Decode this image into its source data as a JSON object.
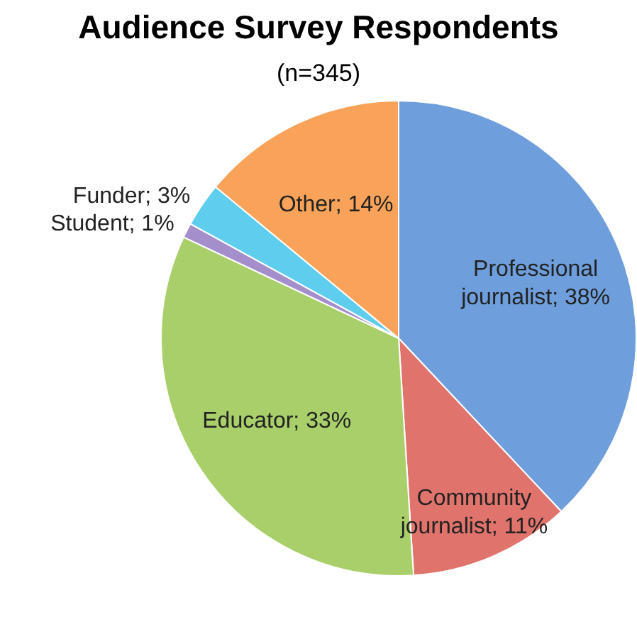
{
  "chart_data": {
    "type": "pie",
    "title": "Audience Survey Respondents",
    "subtitle": "(n=345)",
    "categories": [
      "Professional journalist",
      "Community journalist",
      "Educator",
      "Student",
      "Funder",
      "Other"
    ],
    "values": [
      38,
      11,
      33,
      1,
      3,
      14
    ],
    "value_labels": [
      "38%",
      "11%",
      "33%",
      "1%",
      "3%",
      "14%"
    ],
    "colors": [
      "#6e9fdc",
      "#e0736c",
      "#a9cf6a",
      "#a48fcc",
      "#5fcdee",
      "#f9a35a"
    ],
    "legend": false
  }
}
